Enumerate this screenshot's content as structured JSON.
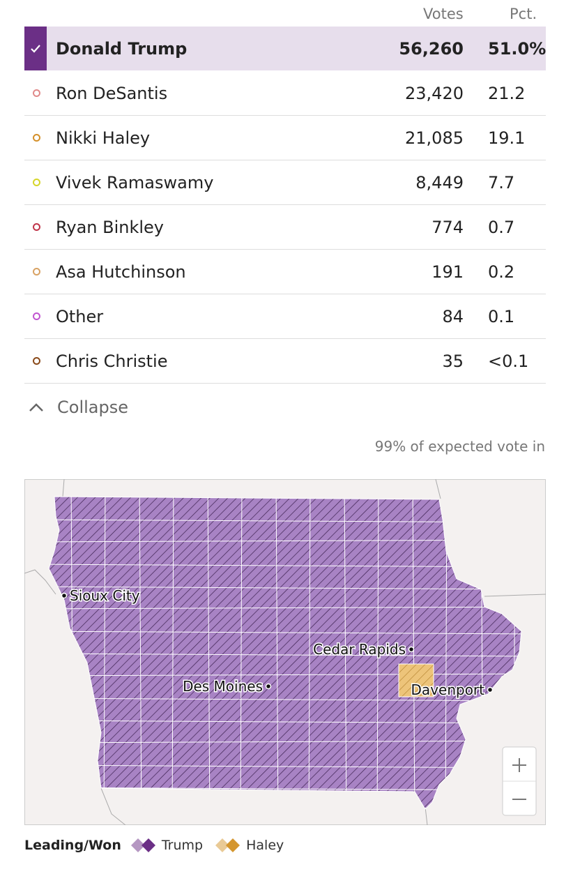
{
  "header": {
    "votes": "Votes",
    "pct": "Pct."
  },
  "rows": [
    {
      "name": "Donald Trump",
      "votes": "56,260",
      "pct": "51.0%",
      "color": "#6b2f86",
      "winner": true
    },
    {
      "name": "Ron DeSantis",
      "votes": "23,420",
      "pct": "21.2",
      "color": "#e08a8a"
    },
    {
      "name": "Nikki Haley",
      "votes": "21,085",
      "pct": "19.1",
      "color": "#d4902a"
    },
    {
      "name": "Vivek Ramaswamy",
      "votes": "8,449",
      "pct": "7.7",
      "color": "#d6d62a"
    },
    {
      "name": "Ryan Binkley",
      "votes": "774",
      "pct": "0.7",
      "color": "#c0354a"
    },
    {
      "name": "Asa Hutchinson",
      "votes": "191",
      "pct": "0.2",
      "color": "#d8a264"
    },
    {
      "name": "Other",
      "votes": "84",
      "pct": "0.1",
      "color": "#c155d0"
    },
    {
      "name": "Chris Christie",
      "votes": "35",
      "pct": "<0.1",
      "color": "#8a4a1a"
    }
  ],
  "collapse": "Collapse",
  "expected": "99% of expected vote in",
  "map": {
    "cities": [
      "Sioux City",
      "Cedar Rapids",
      "Des Moines",
      "Davenport"
    ]
  },
  "legend": {
    "title": "Leading/Won",
    "items": [
      {
        "name": "Trump",
        "color": "#6b2f86"
      },
      {
        "name": "Haley",
        "color": "#d4962e"
      }
    ]
  }
}
